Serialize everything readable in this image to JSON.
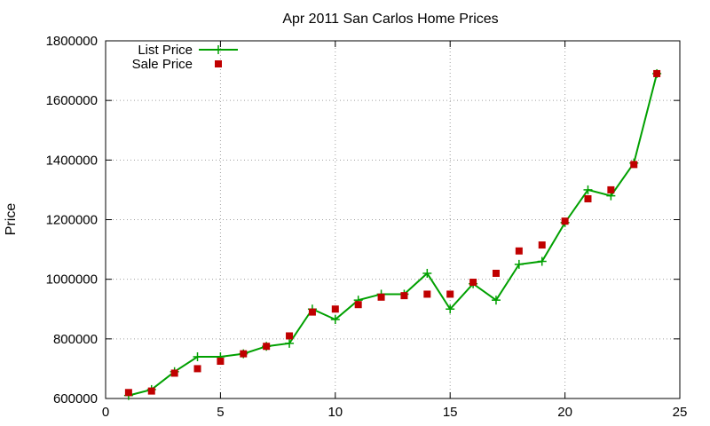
{
  "chart_data": {
    "type": "line",
    "title": "Apr 2011 San Carlos Home Prices",
    "xlabel": "",
    "ylabel": "Price",
    "xlim": [
      0,
      25
    ],
    "ylim": [
      600000,
      1800000
    ],
    "xticks": [
      0,
      5,
      10,
      15,
      20,
      25
    ],
    "yticks": [
      600000,
      800000,
      1000000,
      1200000,
      1400000,
      1600000,
      1800000
    ],
    "grid": true,
    "legend_position": "top-left",
    "x": [
      1,
      2,
      3,
      4,
      5,
      6,
      7,
      8,
      9,
      10,
      11,
      12,
      13,
      14,
      15,
      16,
      17,
      18,
      19,
      20,
      21,
      22,
      23,
      24
    ],
    "series": [
      {
        "name": "List Price",
        "style": "line-with-plus-markers",
        "color": "#00a000",
        "values": [
          610000,
          630000,
          690000,
          740000,
          740000,
          750000,
          775000,
          785000,
          900000,
          865000,
          930000,
          950000,
          950000,
          1020000,
          900000,
          985000,
          930000,
          1050000,
          1060000,
          1190000,
          1300000,
          1280000,
          1390000,
          1690000
        ]
      },
      {
        "name": "Sale Price",
        "style": "square-markers",
        "color": "#c00000",
        "values": [
          620000,
          625000,
          685000,
          700000,
          725000,
          750000,
          775000,
          810000,
          890000,
          900000,
          915000,
          940000,
          945000,
          950000,
          950000,
          990000,
          1020000,
          1095000,
          1115000,
          1195000,
          1270000,
          1300000,
          1385000,
          1690000
        ]
      }
    ]
  }
}
